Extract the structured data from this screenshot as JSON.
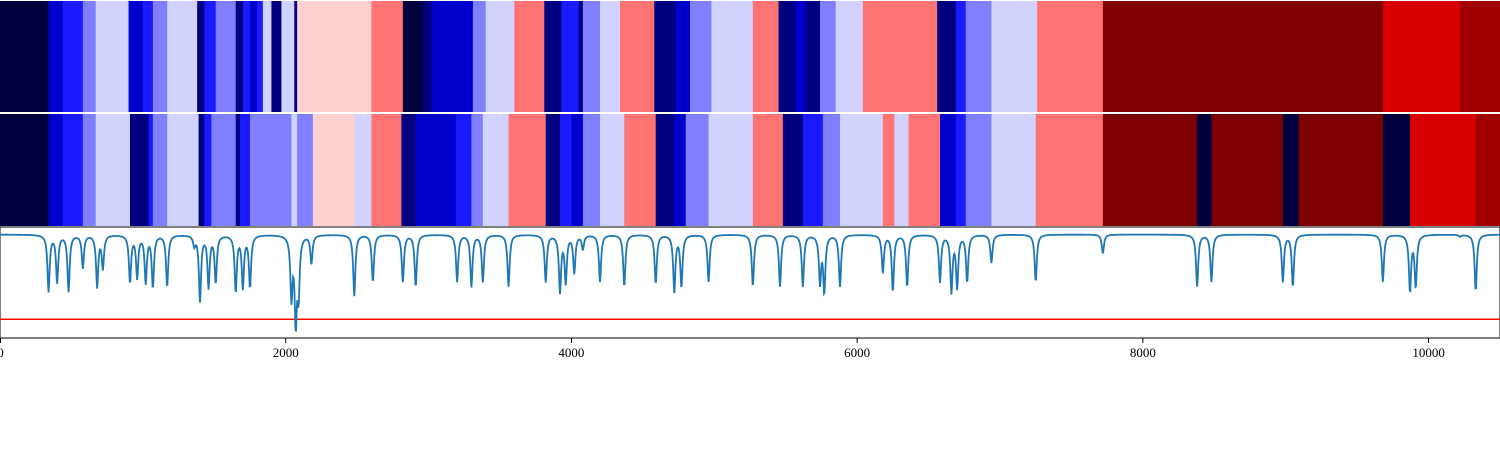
{
  "colors": {
    "c0": "#000040",
    "c1": "#000080",
    "c2": "#0000cc",
    "c3": "#1a1aff",
    "c4": "#8080ff",
    "c5": "#d2d2ff",
    "c6": "#ffd0d0",
    "c7": "#ff7373",
    "c8": "#7f0000",
    "c9": "#a00000",
    "c10": "#d90000",
    "threshold": "#ff0000",
    "signal": "#1f77b4"
  },
  "chart_data": [
    {
      "type": "heatmap",
      "name": "segmentation-row-1",
      "xlim": [
        0,
        10500
      ],
      "segments": [
        [
          0,
          340,
          "c0"
        ],
        [
          340,
          440,
          "c2"
        ],
        [
          440,
          580,
          "c3"
        ],
        [
          580,
          670,
          "c4"
        ],
        [
          670,
          900,
          "c5"
        ],
        [
          900,
          1000,
          "c2"
        ],
        [
          1000,
          1070,
          "c3"
        ],
        [
          1070,
          1170,
          "c4"
        ],
        [
          1170,
          1380,
          "c5"
        ],
        [
          1380,
          1430,
          "c1"
        ],
        [
          1430,
          1510,
          "c3"
        ],
        [
          1510,
          1650,
          "c4"
        ],
        [
          1650,
          1700,
          "c1"
        ],
        [
          1700,
          1750,
          "c3"
        ],
        [
          1750,
          1800,
          "c2"
        ],
        [
          1800,
          1840,
          "c3"
        ],
        [
          1840,
          1900,
          "c5"
        ],
        [
          1900,
          1970,
          "c1"
        ],
        [
          1970,
          2060,
          "c5"
        ],
        [
          2060,
          2080,
          "c1"
        ],
        [
          2080,
          2600,
          "c6"
        ],
        [
          2600,
          2820,
          "c7"
        ],
        [
          2820,
          2960,
          "c0"
        ],
        [
          2960,
          3020,
          "c1"
        ],
        [
          3020,
          3310,
          "c2"
        ],
        [
          3310,
          3400,
          "c4"
        ],
        [
          3400,
          3600,
          "c5"
        ],
        [
          3600,
          3810,
          "c7"
        ],
        [
          3810,
          3930,
          "c1"
        ],
        [
          3930,
          4050,
          "c3"
        ],
        [
          4050,
          4080,
          "c1"
        ],
        [
          4080,
          4200,
          "c4"
        ],
        [
          4200,
          4340,
          "c5"
        ],
        [
          4340,
          4580,
          "c7"
        ],
        [
          4580,
          4730,
          "c1"
        ],
        [
          4730,
          4830,
          "c2"
        ],
        [
          4830,
          4980,
          "c4"
        ],
        [
          4980,
          5270,
          "c5"
        ],
        [
          5270,
          5450,
          "c7"
        ],
        [
          5450,
          5570,
          "c1"
        ],
        [
          5570,
          5640,
          "c2"
        ],
        [
          5640,
          5740,
          "c1"
        ],
        [
          5740,
          5850,
          "c4"
        ],
        [
          5850,
          6040,
          "c5"
        ],
        [
          6040,
          6560,
          "c7"
        ],
        [
          6560,
          6690,
          "c1"
        ],
        [
          6690,
          6760,
          "c3"
        ],
        [
          6760,
          6940,
          "c4"
        ],
        [
          6940,
          7260,
          "c5"
        ],
        [
          7260,
          7720,
          "c7"
        ],
        [
          7720,
          9680,
          "c8"
        ],
        [
          9680,
          10220,
          "c10"
        ],
        [
          10220,
          10500,
          "c9"
        ]
      ]
    },
    {
      "type": "heatmap",
      "name": "segmentation-row-2",
      "xlim": [
        0,
        10500
      ],
      "segments": [
        [
          0,
          340,
          "c0"
        ],
        [
          340,
          440,
          "c2"
        ],
        [
          440,
          580,
          "c3"
        ],
        [
          580,
          670,
          "c4"
        ],
        [
          670,
          910,
          "c5"
        ],
        [
          910,
          1040,
          "c1"
        ],
        [
          1040,
          1070,
          "c3"
        ],
        [
          1070,
          1170,
          "c4"
        ],
        [
          1170,
          1390,
          "c5"
        ],
        [
          1390,
          1430,
          "c1"
        ],
        [
          1430,
          1480,
          "c3"
        ],
        [
          1480,
          1650,
          "c4"
        ],
        [
          1650,
          1680,
          "c1"
        ],
        [
          1680,
          1750,
          "c3"
        ],
        [
          1750,
          2040,
          "c4"
        ],
        [
          2040,
          2080,
          "c5"
        ],
        [
          2080,
          2190,
          "c4"
        ],
        [
          2190,
          2480,
          "c6"
        ],
        [
          2480,
          2600,
          "c5"
        ],
        [
          2600,
          2810,
          "c7"
        ],
        [
          2810,
          2910,
          "c1"
        ],
        [
          2910,
          3190,
          "c2"
        ],
        [
          3190,
          3300,
          "c3"
        ],
        [
          3300,
          3380,
          "c4"
        ],
        [
          3380,
          3560,
          "c5"
        ],
        [
          3560,
          3820,
          "c7"
        ],
        [
          3820,
          3920,
          "c1"
        ],
        [
          3920,
          4000,
          "c3"
        ],
        [
          4000,
          4080,
          "c2"
        ],
        [
          4080,
          4200,
          "c4"
        ],
        [
          4200,
          4370,
          "c5"
        ],
        [
          4370,
          4590,
          "c7"
        ],
        [
          4590,
          4720,
          "c1"
        ],
        [
          4720,
          4800,
          "c2"
        ],
        [
          4800,
          4960,
          "c4"
        ],
        [
          4960,
          5270,
          "c5"
        ],
        [
          5270,
          5480,
          "c7"
        ],
        [
          5480,
          5620,
          "c1"
        ],
        [
          5620,
          5760,
          "c3"
        ],
        [
          5760,
          5880,
          "c4"
        ],
        [
          5880,
          6180,
          "c5"
        ],
        [
          6180,
          6260,
          "c7"
        ],
        [
          6260,
          6360,
          "c5"
        ],
        [
          6360,
          6580,
          "c7"
        ],
        [
          6580,
          6690,
          "c2"
        ],
        [
          6690,
          6760,
          "c3"
        ],
        [
          6760,
          6940,
          "c4"
        ],
        [
          6940,
          7250,
          "c5"
        ],
        [
          7250,
          7720,
          "c7"
        ],
        [
          7720,
          8380,
          "c8"
        ],
        [
          8380,
          8480,
          "c0"
        ],
        [
          8480,
          8980,
          "c8"
        ],
        [
          8980,
          9090,
          "c0"
        ],
        [
          9090,
          9680,
          "c8"
        ],
        [
          9680,
          9870,
          "c0"
        ],
        [
          9870,
          10330,
          "c10"
        ],
        [
          10330,
          10500,
          "c9"
        ]
      ]
    },
    {
      "type": "line",
      "name": "signal-track",
      "xlim": [
        0,
        10500
      ],
      "ylim": [
        -1.1,
        0.08
      ],
      "threshold": -0.9,
      "xticks": [
        "0",
        "2000",
        "4000",
        "6000",
        "8000",
        "10000"
      ],
      "xtick_values": [
        0,
        2000,
        4000,
        6000,
        8000,
        10000
      ],
      "dips": [
        [
          340,
          0.6
        ],
        [
          400,
          0.5
        ],
        [
          480,
          0.6
        ],
        [
          580,
          0.35
        ],
        [
          680,
          0.55
        ],
        [
          720,
          0.35
        ],
        [
          910,
          0.5
        ],
        [
          960,
          0.45
        ],
        [
          1020,
          0.5
        ],
        [
          1070,
          0.55
        ],
        [
          1170,
          0.55
        ],
        [
          1360,
          0.1
        ],
        [
          1400,
          0.7
        ],
        [
          1460,
          0.55
        ],
        [
          1510,
          0.5
        ],
        [
          1650,
          0.6
        ],
        [
          1700,
          0.55
        ],
        [
          1750,
          0.55
        ],
        [
          2040,
          0.65
        ],
        [
          2070,
          0.9
        ],
        [
          2090,
          0.6
        ],
        [
          2180,
          0.3
        ],
        [
          2480,
          0.65
        ],
        [
          2610,
          0.5
        ],
        [
          2820,
          0.5
        ],
        [
          2910,
          0.55
        ],
        [
          3200,
          0.5
        ],
        [
          3300,
          0.55
        ],
        [
          3380,
          0.5
        ],
        [
          3560,
          0.55
        ],
        [
          3820,
          0.5
        ],
        [
          3920,
          0.6
        ],
        [
          3960,
          0.5
        ],
        [
          4020,
          0.4
        ],
        [
          4080,
          0.15
        ],
        [
          4200,
          0.5
        ],
        [
          4370,
          0.55
        ],
        [
          4590,
          0.52
        ],
        [
          4720,
          0.6
        ],
        [
          4770,
          0.55
        ],
        [
          4960,
          0.5
        ],
        [
          5270,
          0.55
        ],
        [
          5460,
          0.55
        ],
        [
          5620,
          0.55
        ],
        [
          5740,
          0.5
        ],
        [
          5770,
          0.6
        ],
        [
          5880,
          0.55
        ],
        [
          6180,
          0.4
        ],
        [
          6250,
          0.6
        ],
        [
          6350,
          0.55
        ],
        [
          6580,
          0.5
        ],
        [
          6660,
          0.6
        ],
        [
          6700,
          0.55
        ],
        [
          6770,
          0.5
        ],
        [
          6940,
          0.3
        ],
        [
          7250,
          0.5
        ],
        [
          7720,
          0.2
        ],
        [
          8380,
          0.55
        ],
        [
          8480,
          0.5
        ],
        [
          8980,
          0.5
        ],
        [
          9050,
          0.55
        ],
        [
          9680,
          0.5
        ],
        [
          9870,
          0.6
        ],
        [
          9910,
          0.55
        ],
        [
          10330,
          0.6
        ],
        [
          10220,
          0.02
        ]
      ]
    }
  ]
}
